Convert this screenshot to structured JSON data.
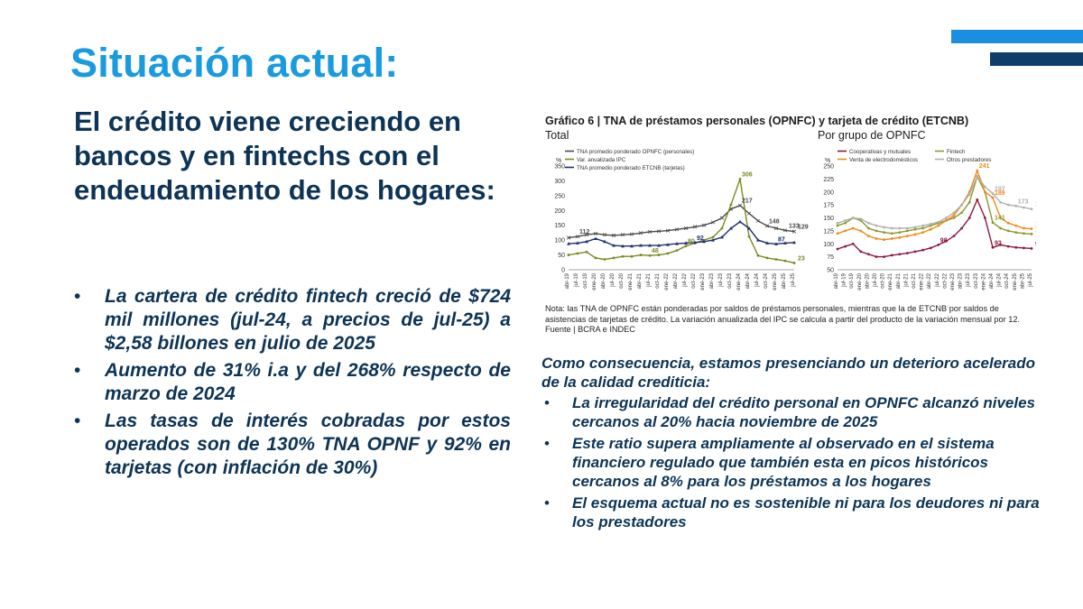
{
  "slide": {
    "title": "Situación actual:",
    "subtitle": "El crédito viene creciendo en bancos y en fintechs con el endeudamiento de los hogares:",
    "bullet_glyph": "•",
    "left_bullets": [
      "La cartera de crédito fintech creció de $724 mil millones (jul-24, a precios de jul-25) a $2,58 billones en julio de 2025",
      "Aumento de 31% i.a y del 268% respecto de marzo de 2024",
      "Las tasas de interés cobradas por estos operados son de 130% TNA OPNF y 92% en tarjetas (con inflación de 30%)"
    ],
    "right_intro": "Como consecuencia, estamos presenciando un deterioro acelerado de la calidad crediticia:",
    "right_bullets": [
      "La irregularidad del crédito personal en OPNFC alcanzó niveles cercanos al 20% hacia noviembre de 2025",
      "Este ratio supera ampliamente al observado en el sistema financiero regulado que también esta en picos históricos cercanos al 8% para los préstamos a los hogares",
      "El esquema actual no es sostenible ni para los deudores ni para los prestadores"
    ],
    "colors": {
      "title": "#1a9be0",
      "text": "#0d3456",
      "bar_light": "#1a8fe0",
      "bar_dark": "#0d3e6b"
    }
  },
  "figure": {
    "title": "Gráfico 6 | TNA de préstamos personales (OPNFC) y tarjeta de crédito (ETCNB)",
    "note": "Nota: las TNA de OPNFC están ponderadas por saldos de préstamos personales, mientras que la de ETCNB por saldos de asistencias de tarjetas de crédito. La variación anualizada del IPC se calcula a partir del producto de la variación mensual por 12.",
    "source": "Fuente | BCRA e INDEC"
  },
  "chart_data": [
    {
      "type": "line",
      "title": "Total",
      "ylabel": "%",
      "ylim": [
        0,
        350
      ],
      "yticks": [
        0,
        50,
        100,
        150,
        200,
        250,
        300,
        350
      ],
      "grid": false,
      "legend": "top-left",
      "categories": [
        "abr-19",
        "jul-19",
        "oct-19",
        "ene-20",
        "abr-20",
        "jul-20",
        "oct-20",
        "ene-21",
        "abr-21",
        "jul-21",
        "oct-21",
        "ene-22",
        "abr-22",
        "jul-22",
        "oct-22",
        "ene-23",
        "abr-23",
        "jul-23",
        "oct-23",
        "ene-24",
        "abr-24",
        "jul-24",
        "oct-24",
        "ene-25",
        "abr-25",
        "jul-25"
      ],
      "series": [
        {
          "name": "TNA promedio ponderado OPNFC (personales)",
          "color": "#4a4a4a",
          "marker": "x",
          "values": [
            108,
            112,
            118,
            122,
            118,
            116,
            118,
            120,
            124,
            128,
            130,
            132,
            136,
            140,
            145,
            150,
            160,
            175,
            205,
            217,
            190,
            165,
            148,
            140,
            133,
            129
          ]
        },
        {
          "name": "Var. anualizada IPC",
          "color": "#7a8a1e",
          "marker": "circle",
          "values": [
            50,
            55,
            60,
            40,
            35,
            40,
            45,
            45,
            50,
            48,
            50,
            55,
            65,
            80,
            90,
            100,
            110,
            140,
            220,
            306,
            112,
            48,
            40,
            35,
            30,
            23
          ]
        },
        {
          "name": "TNA promedio ponderado ETCNB (tarjetas)",
          "color": "#1f2e6e",
          "marker": "triangle",
          "values": [
            88,
            90,
            95,
            105,
            95,
            82,
            80,
            80,
            82,
            82,
            82,
            85,
            88,
            90,
            92,
            95,
            100,
            110,
            140,
            162,
            140,
            100,
            90,
            87,
            90,
            92
          ]
        }
      ],
      "data_labels": [
        "306",
        "217",
        "148",
        "133",
        "129",
        "112",
        "92",
        "87",
        "80",
        "48",
        "23"
      ]
    },
    {
      "type": "line",
      "title": "Por grupo de OPNFC",
      "ylabel": "%",
      "ylim": [
        50,
        250
      ],
      "yticks": [
        50,
        75,
        100,
        125,
        150,
        175,
        200,
        225,
        250
      ],
      "grid": false,
      "legend": "top",
      "categories": [
        "abr-19",
        "jul-19",
        "oct-19",
        "ene-20",
        "abr-20",
        "jul-20",
        "oct-20",
        "ene-21",
        "abr-21",
        "jul-21",
        "oct-21",
        "ene-22",
        "abr-22",
        "jul-22",
        "oct-22",
        "ene-23",
        "abr-23",
        "jul-23",
        "oct-23",
        "ene-24",
        "abr-24",
        "jul-24",
        "oct-24",
        "ene-25",
        "abr-25",
        "jul-25"
      ],
      "series": [
        {
          "name": "Cooperativas y mutuales",
          "color": "#8b1a3a",
          "marker": "circle",
          "values": [
            90,
            95,
            100,
            85,
            80,
            75,
            75,
            78,
            80,
            82,
            85,
            88,
            92,
            98,
            105,
            115,
            130,
            150,
            185,
            150,
            93,
            98,
            95,
            93,
            92,
            91
          ]
        },
        {
          "name": "Fintech",
          "color": "#8a9a2a",
          "marker": "circle",
          "values": [
            135,
            140,
            150,
            145,
            130,
            125,
            122,
            120,
            122,
            125,
            128,
            130,
            135,
            140,
            145,
            150,
            160,
            180,
            230,
            200,
            141,
            130,
            125,
            122,
            120,
            119
          ]
        },
        {
          "name": "Venta de electrodomésticos",
          "color": "#f08a1a",
          "marker": "circle",
          "values": [
            120,
            125,
            130,
            125,
            115,
            110,
            108,
            110,
            112,
            115,
            118,
            122,
            128,
            135,
            145,
            155,
            175,
            200,
            241,
            200,
            189,
            150,
            140,
            135,
            130,
            129
          ]
        },
        {
          "name": "Otros prestadores",
          "color": "#b0b0b0",
          "marker": "circle",
          "values": [
            140,
            145,
            150,
            148,
            140,
            135,
            132,
            130,
            130,
            130,
            132,
            135,
            138,
            142,
            150,
            160,
            175,
            195,
            230,
            210,
            197,
            180,
            175,
            173,
            170,
            167
          ]
        }
      ],
      "data_labels": [
        "241",
        "197",
        "189",
        "167",
        "173",
        "141",
        "133",
        "129",
        "119",
        "98",
        "93",
        "91"
      ]
    }
  ]
}
